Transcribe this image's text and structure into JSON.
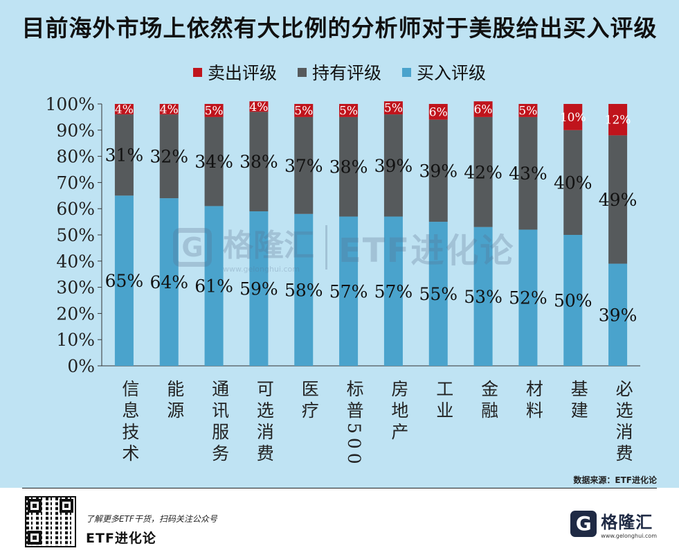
{
  "title": "目前海外市场上依然有大比例的分析师对于美股给出买入评级",
  "source": "数据来源：ETF进化论",
  "watermark": {
    "name": "格隆汇",
    "url": "www.gelonghui.com",
    "right": "ETF进化论"
  },
  "footer": {
    "slogan": "了解更多ETF干货，扫码关注公众号",
    "brand": "ETF进化论",
    "logo_mark": "G",
    "logo_name": "格隆汇",
    "logo_url": "www.gelonghui.com"
  },
  "colors": {
    "background": "#bfe3f3",
    "sell": "#c0141c",
    "hold": "#565a5c",
    "buy": "#4aa3cc"
  },
  "chart_data": {
    "type": "bar",
    "stacked": true,
    "title": "目前海外市场上依然有大比例的分析师对于美股给出买入评级",
    "categories": [
      "信息技术",
      "能源",
      "通讯服务",
      "可选消费",
      "医疗",
      "标普500",
      "房地产",
      "工业",
      "金融",
      "材料",
      "基建",
      "必选消费"
    ],
    "series": [
      {
        "name": "买入评级",
        "key": "buy",
        "values": [
          65,
          64,
          61,
          59,
          58,
          57,
          57,
          55,
          53,
          52,
          50,
          39
        ]
      },
      {
        "name": "持有评级",
        "key": "hold",
        "values": [
          31,
          32,
          34,
          38,
          37,
          38,
          39,
          39,
          42,
          43,
          40,
          49
        ]
      },
      {
        "name": "卖出评级",
        "key": "sell",
        "values": [
          4,
          4,
          5,
          4,
          5,
          5,
          5,
          6,
          6,
          5,
          10,
          12
        ]
      }
    ],
    "legend_order": [
      "sell",
      "hold",
      "buy"
    ],
    "legend_labels": {
      "sell": "卖出评级",
      "hold": "持有评级",
      "buy": "买入评级"
    },
    "ylim": [
      0,
      100
    ],
    "yticks": [
      "0%",
      "10%",
      "20%",
      "30%",
      "40%",
      "50%",
      "60%",
      "70%",
      "80%",
      "90%",
      "100%"
    ],
    "xlabel": "",
    "ylabel": "",
    "legend_position": "top-center"
  }
}
